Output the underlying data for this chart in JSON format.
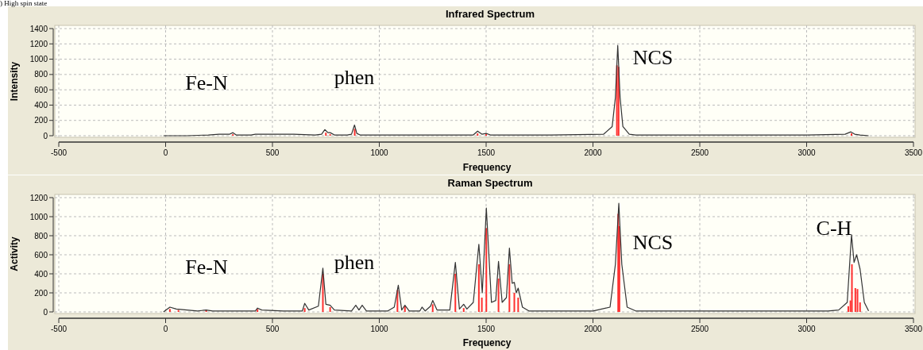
{
  "chart_data": [
    {
      "type": "line",
      "title": "Infrared Spectrum",
      "subtitle": ") High spin state",
      "xlabel": "Frequency",
      "ylabel": "Intensity",
      "xlim": [
        -500,
        3500
      ],
      "xticks": [
        -500,
        0,
        500,
        1000,
        1500,
        2000,
        2500,
        3000,
        3500
      ],
      "ylim": [
        0,
        1400
      ],
      "yticks": [
        0,
        200,
        400,
        600,
        800,
        1000,
        1200,
        1400
      ],
      "grid": true,
      "annotations": [
        "Fe-N",
        "phen",
        "NCS"
      ],
      "series": [
        {
          "type": "bar",
          "color": "#ff3030",
          "x": [
            315,
            750,
            770,
            885,
            1460,
            1500,
            2112,
            2120,
            3210
          ],
          "values": [
            20,
            40,
            20,
            90,
            30,
            20,
            920,
            900,
            30
          ]
        },
        {
          "color": "#333333",
          "x": [
            -10,
            100,
            200,
            250,
            280,
            300,
            315,
            330,
            400,
            420,
            500,
            600,
            700,
            730,
            745,
            760,
            770,
            790,
            850,
            870,
            884,
            895,
            910,
            1000,
            1300,
            1440,
            1460,
            1480,
            1500,
            1520,
            1600,
            1800,
            2050,
            2090,
            2105,
            2116,
            2127,
            2140,
            2170,
            2200,
            2600,
            3000,
            3180,
            3207,
            3225,
            3250,
            3290
          ],
          "values": [
            0,
            0,
            10,
            20,
            20,
            20,
            40,
            10,
            10,
            20,
            20,
            20,
            10,
            20,
            80,
            40,
            40,
            10,
            10,
            20,
            140,
            30,
            10,
            10,
            10,
            10,
            60,
            20,
            30,
            10,
            10,
            10,
            20,
            120,
            500,
            1180,
            500,
            120,
            20,
            10,
            10,
            10,
            20,
            50,
            20,
            10,
            0
          ]
        }
      ]
    },
    {
      "type": "line",
      "title": "Raman Spectrum",
      "xlabel": "Frequency",
      "ylabel": "Activity",
      "xlim": [
        -500,
        3500
      ],
      "xticks": [
        -500,
        0,
        500,
        1000,
        1500,
        2000,
        2500,
        3000,
        3500
      ],
      "ylim": [
        0,
        1200
      ],
      "yticks": [
        0,
        200,
        400,
        600,
        800,
        1000,
        1200
      ],
      "grid": true,
      "annotations": [
        "Fe-N",
        "phen",
        "NCS",
        "C-H"
      ],
      "series": [
        {
          "type": "bar",
          "color": "#ff3030",
          "x": [
            20,
            60,
            190,
            430,
            651,
            736,
            770,
            1085,
            1120,
            1250,
            1356,
            1395,
            1466,
            1480,
            1501,
            1558,
            1609,
            1632,
            1650,
            2118,
            2124,
            3195,
            3205,
            3212,
            3228,
            3238,
            3250
          ],
          "values": [
            30,
            20,
            20,
            30,
            40,
            400,
            50,
            230,
            60,
            80,
            400,
            40,
            500,
            150,
            880,
            350,
            500,
            200,
            150,
            1030,
            900,
            60,
            120,
            500,
            250,
            240,
            100
          ]
        },
        {
          "color": "#333333",
          "x": [
            -10,
            20,
            50,
            100,
            150,
            190,
            220,
            300,
            420,
            430,
            450,
            550,
            600,
            640,
            651,
            670,
            715,
            736,
            750,
            770,
            790,
            870,
            890,
            905,
            920,
            940,
            1040,
            1070,
            1089,
            1105,
            1120,
            1140,
            1190,
            1200,
            1215,
            1240,
            1250,
            1270,
            1330,
            1356,
            1375,
            1395,
            1410,
            1440,
            1466,
            1482,
            1501,
            1525,
            1545,
            1558,
            1575,
            1595,
            1609,
            1622,
            1632,
            1641,
            1650,
            1670,
            1700,
            2000,
            2080,
            2105,
            2121,
            2135,
            2160,
            2200,
            3100,
            3150,
            3190,
            3210,
            3222,
            3234,
            3250,
            3270,
            3290
          ],
          "values": [
            0,
            50,
            30,
            20,
            10,
            20,
            10,
            10,
            10,
            40,
            20,
            10,
            10,
            10,
            90,
            20,
            60,
            460,
            80,
            70,
            20,
            10,
            70,
            20,
            70,
            10,
            10,
            50,
            280,
            20,
            70,
            10,
            10,
            50,
            10,
            60,
            120,
            20,
            20,
            520,
            30,
            80,
            30,
            100,
            710,
            200,
            1090,
            100,
            120,
            530,
            100,
            150,
            670,
            300,
            310,
            200,
            250,
            50,
            10,
            10,
            50,
            500,
            1140,
            500,
            50,
            10,
            10,
            20,
            100,
            810,
            520,
            600,
            450,
            100,
            10
          ]
        }
      ]
    }
  ]
}
